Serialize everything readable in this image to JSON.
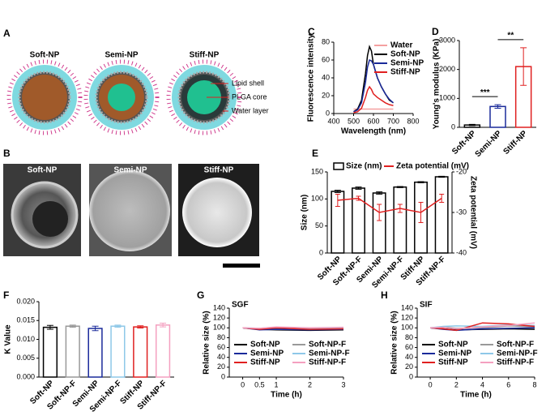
{
  "panel_labels": [
    "A",
    "B",
    "C",
    "D",
    "E",
    "F",
    "G",
    "H"
  ],
  "diagram": {
    "particles": [
      "Soft-NP",
      "Semi-NP",
      "Stiff-NP"
    ],
    "parts": [
      "Lipid shell",
      "PLGA core",
      "Water layer"
    ]
  },
  "micrographs": [
    "Soft-NP",
    "Semi-NP",
    "Stiff-NP"
  ],
  "chart_data": [
    {
      "type": "line",
      "xlabel": "Wavelength (nm)",
      "ylabel": "Fluorescence intensity",
      "x": [
        500,
        520,
        540,
        560,
        570,
        580,
        590,
        600,
        620,
        640,
        660,
        680,
        700
      ],
      "series": [
        {
          "name": "Water",
          "color": "#f4a0a0",
          "values": [
            5,
            5,
            5,
            5,
            5,
            5,
            5,
            5,
            5,
            5,
            5,
            5,
            5
          ]
        },
        {
          "name": "Soft-NP",
          "color": "#000000",
          "values": [
            2,
            5,
            15,
            45,
            65,
            75,
            70,
            55,
            40,
            30,
            22,
            15,
            12
          ]
        },
        {
          "name": "Semi-NP",
          "color": "#1a2a9a",
          "values": [
            2,
            4,
            12,
            35,
            52,
            60,
            59,
            55,
            40,
            30,
            22,
            16,
            12
          ]
        },
        {
          "name": "Stiff-NP",
          "color": "#e02020",
          "values": [
            1,
            2,
            6,
            18,
            26,
            30,
            27,
            22,
            18,
            15,
            12,
            10,
            9
          ]
        }
      ],
      "xlim": [
        400,
        800
      ],
      "xticks": [
        400,
        500,
        600,
        700,
        800
      ],
      "ylim": [
        0,
        80
      ],
      "yticks": [
        0,
        20,
        40,
        60,
        80
      ],
      "legend": "upper right"
    },
    {
      "type": "bar",
      "ylabel": "Young's modulus (KPa)",
      "categories": [
        "Soft-NP",
        "Semi-NP",
        "Stiff-NP"
      ],
      "values": [
        80,
        720,
        2100
      ],
      "errors": [
        20,
        60,
        650
      ],
      "colors": [
        "#000000",
        "#1a2a9a",
        "#e02020"
      ],
      "ylim": [
        0,
        3000
      ],
      "yticks": [
        0,
        1000,
        2000,
        3000
      ],
      "significance": [
        "***",
        "**"
      ]
    },
    {
      "type": "bar",
      "ylabel": "Size (nm)",
      "y2label": "Zeta potential (mV)",
      "categories": [
        "Soft-NP",
        "Soft-NP-F",
        "Semi-NP",
        "Semi-NP-F",
        "Stiff-NP",
        "Stiff-NP-F"
      ],
      "series": [
        {
          "name": "Size (nm)",
          "color": "#000000",
          "values": [
            114,
            120,
            111,
            122,
            131,
            141
          ],
          "errors": [
            2,
            2,
            2,
            1,
            1,
            1
          ]
        },
        {
          "name": "Zeta potential (mV)",
          "color": "#e02020",
          "type": "line",
          "axis": "y2",
          "values": [
            -27,
            -26.5,
            -30,
            -29,
            -30,
            -26.5
          ],
          "errors": [
            1.5,
            0.5,
            2,
            1,
            2.5,
            1
          ]
        }
      ],
      "ylim": [
        0,
        150
      ],
      "yticks": [
        0,
        50,
        100,
        150
      ],
      "y2lim": [
        -40,
        -20
      ],
      "y2ticks": [
        -40,
        -30,
        -20
      ],
      "legend": "top"
    },
    {
      "type": "bar",
      "ylabel": "K Value",
      "categories": [
        "Soft-NP",
        "Soft-NP-F",
        "Semi-NP",
        "Semi-NP-F",
        "Stiff-NP",
        "Stiff-NP-F"
      ],
      "values": [
        0.0132,
        0.0135,
        0.0129,
        0.0135,
        0.0133,
        0.0138
      ],
      "errors": [
        0.0005,
        0.0003,
        0.0006,
        0.0003,
        0.0003,
        0.0005
      ],
      "colors": [
        "#000000",
        "#999999",
        "#1a2a9a",
        "#8ec8e8",
        "#e02020",
        "#f4a0c0"
      ],
      "ylim": [
        0,
        0.02
      ],
      "yticks": [
        {
          "value": 0,
          "label": "0.000"
        },
        {
          "value": 0.005,
          "label": "0.005"
        },
        {
          "value": 0.01,
          "label": "0.010"
        },
        {
          "value": 0.015,
          "label": "0.015"
        },
        {
          "value": 0.02,
          "label": "0.020"
        }
      ]
    },
    {
      "type": "line",
      "title": "SGF",
      "xlabel": "Time (h)",
      "ylabel": "Relative size (%)",
      "x": [
        0,
        0.5,
        1,
        2,
        3
      ],
      "series": [
        {
          "name": "Soft-NP",
          "color": "#000000",
          "values": [
            100,
            97,
            96,
            95,
            96
          ]
        },
        {
          "name": "Soft-NP-F",
          "color": "#999999",
          "values": [
            100,
            98,
            99,
            97,
            98
          ]
        },
        {
          "name": "Semi-NP",
          "color": "#1a2a9a",
          "values": [
            100,
            96,
            97,
            96,
            97
          ]
        },
        {
          "name": "Semi-NP-F",
          "color": "#8ec8e8",
          "values": [
            100,
            99,
            101,
            99,
            100
          ]
        },
        {
          "name": "Stiff-NP",
          "color": "#e02020",
          "values": [
            100,
            97,
            100,
            97,
            98
          ]
        },
        {
          "name": "Stiff-NP-F",
          "color": "#f4a0c0",
          "values": [
            100,
            99,
            102,
            100,
            101
          ]
        }
      ],
      "xlim": [
        -0.4,
        3
      ],
      "xticks": [
        0,
        0.5,
        1,
        2,
        3
      ],
      "ylim": [
        0,
        140
      ],
      "yticks": [
        0,
        20,
        40,
        60,
        80,
        100,
        120,
        140
      ],
      "legend": "lower center"
    },
    {
      "type": "line",
      "title": "SIF",
      "xlabel": "Time (h)",
      "ylabel": "Relative size (%)",
      "x": [
        0,
        1,
        2,
        4,
        6,
        8
      ],
      "series": [
        {
          "name": "Soft-NP",
          "color": "#000000",
          "values": [
            100,
            98,
            96,
            97,
            98,
            97
          ]
        },
        {
          "name": "Soft-NP-F",
          "color": "#999999",
          "values": [
            100,
            102,
            99,
            100,
            104,
            102
          ]
        },
        {
          "name": "Semi-NP",
          "color": "#1a2a9a",
          "values": [
            100,
            97,
            95,
            98,
            99,
            100
          ]
        },
        {
          "name": "Semi-NP-F",
          "color": "#8ec8e8",
          "values": [
            100,
            103,
            104,
            103,
            106,
            105
          ]
        },
        {
          "name": "Stiff-NP",
          "color": "#e02020",
          "values": [
            100,
            98,
            95,
            110,
            108,
            103
          ]
        },
        {
          "name": "Stiff-NP-F",
          "color": "#f4a0c0",
          "values": [
            100,
            101,
            98,
            102,
            105,
            110
          ]
        }
      ],
      "xlim": [
        -1,
        8
      ],
      "xticks": [
        0,
        2,
        4,
        6,
        8
      ],
      "ylim": [
        0,
        140
      ],
      "yticks": [
        0,
        20,
        40,
        60,
        80,
        100,
        120,
        140
      ],
      "legend": "lower center"
    }
  ]
}
